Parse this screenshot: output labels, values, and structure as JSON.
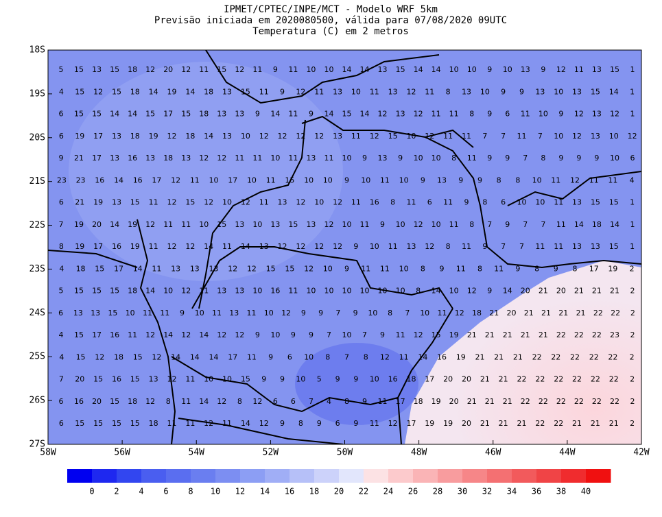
{
  "header": {
    "lines": [
      "IPMET/CPTEC/INPE/MCT - Modelo WRF 5km",
      "Previsão iniciada em 2020080500, válida para 07/08/2020 09UTC",
      "Temperatura (C) em 2 metros"
    ]
  },
  "map": {
    "xlim": [
      -58,
      -42
    ],
    "ylim": [
      -27,
      -18
    ],
    "xticks": [
      {
        "value": -58,
        "label": "58W"
      },
      {
        "value": -56,
        "label": "56W"
      },
      {
        "value": -54,
        "label": "54W"
      },
      {
        "value": -52,
        "label": "52W"
      },
      {
        "value": -50,
        "label": "50W"
      },
      {
        "value": -48,
        "label": "48W"
      },
      {
        "value": -46,
        "label": "46W"
      },
      {
        "value": -44,
        "label": "44W"
      },
      {
        "value": -42,
        "label": "42W"
      }
    ],
    "yticks": [
      {
        "value": -18,
        "label": "18S"
      },
      {
        "value": -19,
        "label": "19S"
      },
      {
        "value": -20,
        "label": "20S"
      },
      {
        "value": -21,
        "label": "21S"
      },
      {
        "value": -22,
        "label": "22S"
      },
      {
        "value": -23,
        "label": "23S"
      },
      {
        "value": -24,
        "label": "24S"
      },
      {
        "value": -25,
        "label": "25S"
      },
      {
        "value": -26,
        "label": "26S"
      },
      {
        "value": -27,
        "label": "27S"
      }
    ],
    "grid": [
      [
        5,
        15,
        13,
        15,
        18,
        12,
        20,
        12,
        11,
        15,
        12,
        11,
        9,
        11,
        10,
        10,
        14,
        14,
        13,
        15,
        14,
        14,
        10,
        10,
        9,
        10,
        13,
        9,
        12,
        11,
        13,
        15,
        1
      ],
      [
        4,
        15,
        12,
        15,
        18,
        14,
        19,
        14,
        18,
        13,
        15,
        11,
        9,
        12,
        11,
        13,
        10,
        11,
        13,
        12,
        11,
        8,
        13,
        10,
        9,
        9,
        13,
        10,
        13,
        15,
        14,
        1
      ],
      [
        6,
        15,
        15,
        14,
        14,
        15,
        17,
        15,
        18,
        13,
        13,
        9,
        14,
        11,
        9,
        14,
        15,
        14,
        12,
        13,
        12,
        11,
        11,
        8,
        9,
        6,
        11,
        10,
        9,
        12,
        13,
        12,
        1
      ],
      [
        6,
        19,
        17,
        13,
        18,
        19,
        12,
        18,
        14,
        13,
        10,
        12,
        12,
        12,
        12,
        13,
        11,
        12,
        15,
        10,
        12,
        11,
        11,
        7,
        7,
        11,
        7,
        10,
        12,
        13,
        10,
        12
      ],
      [
        9,
        21,
        17,
        13,
        16,
        13,
        18,
        13,
        12,
        12,
        11,
        11,
        10,
        11,
        13,
        11,
        10,
        9,
        13,
        9,
        10,
        10,
        8,
        11,
        9,
        9,
        7,
        8,
        9,
        9,
        9,
        10,
        6
      ],
      [
        23,
        23,
        16,
        14,
        16,
        17,
        12,
        11,
        10,
        17,
        10,
        11,
        15,
        10,
        10,
        9,
        10,
        11,
        10,
        9,
        13,
        9,
        9,
        8,
        8,
        10,
        11,
        12,
        11,
        11,
        4
      ],
      [
        6,
        21,
        19,
        13,
        15,
        11,
        12,
        15,
        12,
        10,
        12,
        11,
        13,
        12,
        10,
        12,
        11,
        16,
        8,
        11,
        6,
        11,
        9,
        8,
        6,
        10,
        10,
        11,
        13,
        15,
        15,
        1
      ],
      [
        7,
        19,
        20,
        14,
        19,
        12,
        11,
        11,
        10,
        15,
        13,
        10,
        13,
        15,
        13,
        12,
        10,
        11,
        9,
        10,
        12,
        10,
        11,
        8,
        7,
        9,
        7,
        7,
        11,
        14,
        18,
        14,
        1
      ],
      [
        8,
        19,
        17,
        16,
        19,
        11,
        12,
        12,
        14,
        11,
        14,
        13,
        12,
        12,
        12,
        12,
        9,
        10,
        11,
        13,
        12,
        8,
        11,
        9,
        7,
        7,
        11,
        11,
        13,
        13,
        15,
        1
      ],
      [
        4,
        18,
        15,
        17,
        14,
        11,
        13,
        13,
        13,
        12,
        12,
        15,
        15,
        12,
        10,
        9,
        11,
        11,
        10,
        8,
        9,
        11,
        8,
        11,
        9,
        8,
        9,
        8,
        17,
        19,
        2
      ],
      [
        5,
        15,
        15,
        15,
        18,
        14,
        10,
        12,
        11,
        13,
        13,
        10,
        16,
        11,
        10,
        10,
        10,
        10,
        10,
        10,
        8,
        14,
        10,
        12,
        9,
        14,
        20,
        21,
        20,
        21,
        21,
        21,
        2
      ],
      [
        6,
        13,
        13,
        15,
        10,
        11,
        11,
        9,
        10,
        11,
        13,
        11,
        10,
        12,
        9,
        9,
        7,
        9,
        10,
        8,
        7,
        10,
        11,
        12,
        18,
        21,
        20,
        21,
        21,
        21,
        21,
        22,
        22,
        2
      ],
      [
        4,
        15,
        17,
        16,
        11,
        12,
        14,
        12,
        14,
        12,
        12,
        9,
        10,
        9,
        9,
        7,
        10,
        7,
        9,
        11,
        12,
        15,
        19,
        21,
        21,
        21,
        21,
        21,
        22,
        22,
        22,
        23,
        2
      ],
      [
        4,
        15,
        12,
        18,
        15,
        12,
        14,
        14,
        14,
        17,
        11,
        9,
        6,
        10,
        8,
        7,
        8,
        12,
        11,
        14,
        16,
        19,
        21,
        21,
        21,
        22,
        22,
        22,
        22,
        22,
        2
      ],
      [
        7,
        20,
        15,
        16,
        15,
        13,
        12,
        11,
        10,
        10,
        15,
        9,
        9,
        10,
        5,
        9,
        9,
        10,
        16,
        18,
        17,
        20,
        20,
        21,
        21,
        22,
        22,
        22,
        22,
        22,
        22,
        2
      ],
      [
        6,
        16,
        20,
        15,
        18,
        12,
        8,
        11,
        14,
        12,
        8,
        12,
        6,
        6,
        7,
        4,
        8,
        9,
        11,
        17,
        18,
        19,
        20,
        21,
        21,
        21,
        22,
        22,
        22,
        22,
        22,
        22,
        2
      ],
      [
        6,
        15,
        15,
        15,
        15,
        18,
        11,
        11,
        12,
        11,
        14,
        12,
        9,
        8,
        9,
        6,
        9,
        11,
        12,
        17,
        19,
        19,
        20,
        21,
        21,
        21,
        22,
        22,
        21,
        21,
        21,
        2
      ]
    ]
  },
  "colorbar": {
    "colors": [
      "#0000f0",
      "#1e28f0",
      "#3246f0",
      "#4a5ef0",
      "#5a6ef0",
      "#6a7ef0",
      "#7c8ef2",
      "#8c9ef4",
      "#a0aef6",
      "#b6c0f8",
      "#ccd2fa",
      "#e2e6fc",
      "#fce2e4",
      "#fccacc",
      "#fab4b6",
      "#f89c9e",
      "#f68688",
      "#f47072",
      "#f25a5c",
      "#f04446",
      "#f02c2e",
      "#f01010"
    ],
    "labels": [
      0,
      2,
      4,
      6,
      8,
      10,
      12,
      14,
      16,
      18,
      20,
      22,
      24,
      26,
      28,
      30,
      32,
      34,
      36,
      38,
      40
    ]
  }
}
